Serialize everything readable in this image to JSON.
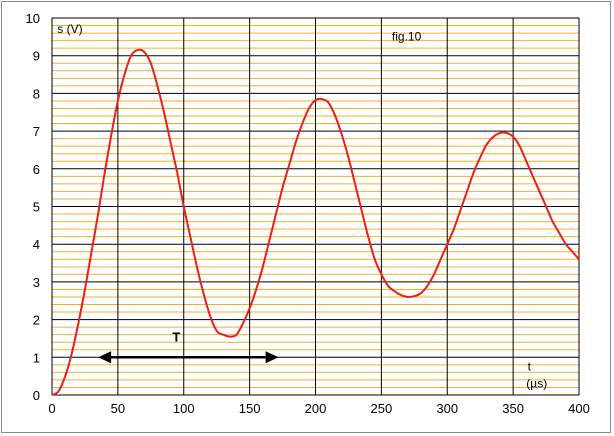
{
  "chart_data": {
    "type": "line",
    "xlim": [
      0,
      400
    ],
    "ylim": [
      0,
      10
    ],
    "x_ticks": [
      0,
      50,
      100,
      150,
      200,
      250,
      300,
      350,
      400
    ],
    "y_ticks": [
      0,
      1,
      2,
      3,
      4,
      5,
      6,
      7,
      8,
      9,
      10
    ],
    "x_tick_labels": [
      "0",
      "50",
      "100",
      "150",
      "200",
      "250",
      "300",
      "350",
      "400"
    ],
    "y_tick_labels": [
      "0",
      "1",
      "2",
      "3",
      "4",
      "5",
      "6",
      "7",
      "8",
      "9",
      "10"
    ],
    "ylabel": "s (V)",
    "xlabel_line1": "t",
    "xlabel_line2": "(µs)",
    "figure_label": "fig.10",
    "grid": true,
    "minor_grid_y_step": 0.2,
    "colors": {
      "curve": "#e8201a",
      "major_grid": "#000000",
      "minor_grid": "#f2b030",
      "arrow": "#000000"
    },
    "series": [
      {
        "x": [
          0,
          5,
          10,
          15,
          20,
          25,
          30,
          35,
          40,
          45,
          50,
          55,
          60,
          65,
          70,
          75,
          80,
          85,
          90,
          95,
          100,
          105,
          110,
          115,
          120,
          125,
          130,
          135,
          140,
          145,
          150,
          155,
          160,
          165,
          170,
          175,
          180,
          185,
          190,
          195,
          200,
          205,
          210,
          215,
          220,
          225,
          230,
          235,
          240,
          245,
          250,
          255,
          260,
          265,
          270,
          275,
          280,
          285,
          290,
          295,
          300,
          305,
          310,
          315,
          320,
          325,
          330,
          335,
          340,
          345,
          350,
          355,
          360,
          365,
          370,
          375,
          380,
          385,
          390,
          395,
          400
        ],
        "y": [
          0,
          0.1,
          0.5,
          1.1,
          1.9,
          2.8,
          3.8,
          4.8,
          5.9,
          6.9,
          7.8,
          8.5,
          9.0,
          9.15,
          9.1,
          8.8,
          8.2,
          7.5,
          6.7,
          5.9,
          5.0,
          4.2,
          3.4,
          2.7,
          2.1,
          1.7,
          1.6,
          1.55,
          1.6,
          1.9,
          2.3,
          2.8,
          3.4,
          4.1,
          4.8,
          5.5,
          6.1,
          6.7,
          7.2,
          7.6,
          7.82,
          7.85,
          7.75,
          7.4,
          6.9,
          6.3,
          5.6,
          4.9,
          4.2,
          3.6,
          3.2,
          2.9,
          2.75,
          2.65,
          2.6,
          2.62,
          2.7,
          2.9,
          3.2,
          3.6,
          4.0,
          4.4,
          4.9,
          5.4,
          5.9,
          6.3,
          6.65,
          6.85,
          6.95,
          6.95,
          6.85,
          6.6,
          6.2,
          5.8,
          5.4,
          5.0,
          4.6,
          4.3,
          4.0,
          3.8,
          3.6
        ]
      }
    ],
    "period_arrow": {
      "label": "T",
      "x_start": 35,
      "x_end": 172,
      "y": 1
    }
  }
}
